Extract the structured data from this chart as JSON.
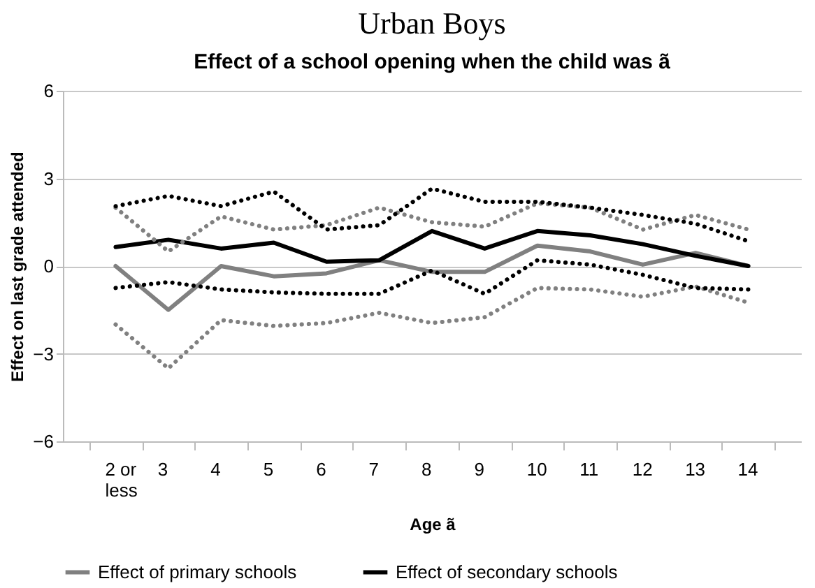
{
  "chart_data": {
    "type": "line",
    "title": "Urban Boys",
    "subtitle": "Effect of a school opening when the child was ã",
    "xlabel": "Age ã",
    "ylabel": "Effect on last grade attended",
    "categories": [
      "2 or less",
      "3",
      "4",
      "5",
      "6",
      "7",
      "8",
      "9",
      "10",
      "11",
      "12",
      "13",
      "14"
    ],
    "series": [
      {
        "name": "Effect of primary schools",
        "color": "#808080",
        "line_style": "solid",
        "values": [
          0.0,
          -1.5,
          0.0,
          -0.35,
          -0.25,
          0.2,
          -0.2,
          -0.2,
          0.7,
          0.5,
          0.05,
          0.45,
          0.0
        ]
      },
      {
        "name": "Effect of secondary schools",
        "color": "#000000",
        "line_style": "solid",
        "values": [
          0.65,
          0.9,
          0.6,
          0.8,
          0.15,
          0.2,
          1.2,
          0.6,
          1.2,
          1.05,
          0.75,
          0.35,
          0.0
        ]
      },
      {
        "color": "#808080",
        "line_style": "dotted",
        "values": [
          2.0,
          0.5,
          1.7,
          1.25,
          1.4,
          2.0,
          1.5,
          1.35,
          2.15,
          2.0,
          1.25,
          1.75,
          1.25
        ]
      },
      {
        "color": "#808080",
        "line_style": "dotted",
        "values": [
          -2.0,
          -3.5,
          -1.85,
          -2.05,
          -1.95,
          -1.6,
          -1.95,
          -1.75,
          -0.75,
          -0.8,
          -1.05,
          -0.7,
          -1.25
        ]
      },
      {
        "color": "#000000",
        "line_style": "dotted",
        "values": [
          2.05,
          2.4,
          2.05,
          2.55,
          1.25,
          1.4,
          2.65,
          2.2,
          2.2,
          2.0,
          1.75,
          1.45,
          0.85
        ]
      },
      {
        "color": "#000000",
        "line_style": "dotted",
        "values": [
          -0.75,
          -0.55,
          -0.8,
          -0.9,
          -0.95,
          -0.95,
          -0.15,
          -0.95,
          0.2,
          0.05,
          -0.3,
          -0.75,
          -0.8
        ]
      }
    ],
    "ylim": [
      -6,
      6
    ],
    "yticks": [
      -6,
      -3,
      0,
      3,
      6
    ],
    "grid": "y",
    "legend": "bottom",
    "marker": "none"
  }
}
